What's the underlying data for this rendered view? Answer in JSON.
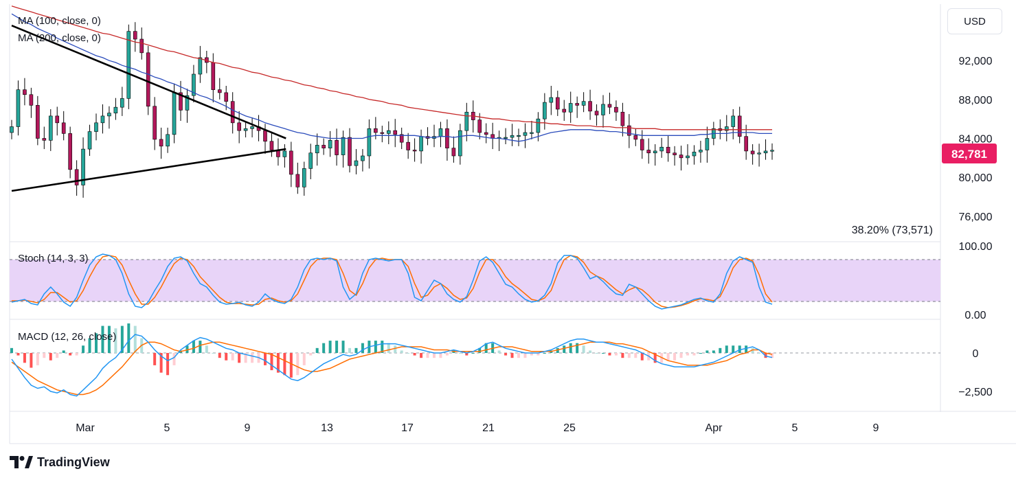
{
  "currency_button": "USD",
  "brand": {
    "name": "TradingView",
    "icon": "tradingview-logo-icon"
  },
  "colors": {
    "up": "#089981",
    "down": "#f23645",
    "candle_up": "#26a69a",
    "candle_down": "#b2185b",
    "ma100": "#2a4bbb",
    "ma200": "#c62828",
    "stoch_k": "#2196f3",
    "stoch_d": "#ff6d00",
    "price_tag": "#e91e63",
    "stoch_band": "#e1c8f7"
  },
  "chart_data": {
    "type": "candlestick",
    "price_axis": {
      "ticks": [
        "92,000",
        "88,000",
        "84,000",
        "80,000",
        "76,000"
      ],
      "range": [
        73800,
        97800
      ]
    },
    "last_price": "82,781",
    "fib_label": "38.20% (73,571)",
    "x_axis": {
      "ticks": [
        "Mar",
        "5",
        "9",
        "13",
        "17",
        "21",
        "25",
        "Apr",
        "5",
        "9"
      ]
    },
    "indicators": {
      "ma100": "MA (100, close, 0)",
      "ma200": "MA (200, close, 0)",
      "stoch": "Stoch (14, 3, 3)",
      "macd": "MACD (12, 26, close)"
    },
    "stoch_axis": {
      "ticks": [
        "100.00",
        "0.00"
      ],
      "band": [
        20,
        80
      ]
    },
    "macd_axis": {
      "ticks": [
        "0",
        "−2,500"
      ]
    },
    "trendlines": [
      {
        "from": [
          0,
          95600
        ],
        "to": [
          42.2,
          84000
        ]
      },
      {
        "from": [
          0,
          78600
        ],
        "to": [
          42.2,
          82900
        ]
      }
    ],
    "price": [
      85200,
      89000,
      88500,
      87400,
      84000,
      83800,
      86300,
      85600,
      84500,
      80800,
      79200,
      82900,
      84700,
      85600,
      86300,
      86600,
      87200,
      88100,
      95000,
      94200,
      92800,
      87300,
      83900,
      83200,
      84400,
      88700,
      86900,
      88400,
      90600,
      92300,
      91800,
      89000,
      88700,
      87800,
      85600,
      84800,
      85000,
      85200,
      84800,
      83700,
      82800,
      82100,
      82700,
      80300,
      79000,
      80900,
      82500,
      83300,
      83000,
      83800,
      82300,
      84100,
      81200,
      81700,
      82200,
      85000,
      84600,
      84500,
      84800,
      84400,
      83600,
      82800,
      82700,
      84200,
      84000,
      84200,
      85000,
      83000,
      82200,
      84800,
      86700,
      85900,
      84600,
      84400,
      84000,
      84100,
      84100,
      84300,
      84300,
      84600,
      84600,
      86000,
      87700,
      88200,
      87000,
      86700,
      87600,
      87400,
      87800,
      86800,
      86400,
      87500,
      87200,
      86700,
      85300,
      84300,
      83900,
      82800,
      82500,
      82700,
      83100,
      82500,
      82300,
      82000,
      82200,
      82600,
      82800,
      84000,
      85000,
      84800,
      85200,
      86300,
      84200,
      82700,
      82400,
      82500,
      82700,
      82781
    ],
    "ma100": [
      96800,
      96400,
      96000,
      95700,
      95300,
      95000,
      94700,
      94300,
      94000,
      93700,
      93400,
      93100,
      92800,
      92500,
      92300,
      92000,
      91800,
      91500,
      91300,
      91100,
      90800,
      90600,
      90300,
      90100,
      89800,
      89600,
      89300,
      89000,
      88700,
      88400,
      88200,
      87900,
      87600,
      87300,
      86900,
      86600,
      86300,
      86100,
      85900,
      85600,
      85400,
      85200,
      85000,
      84800,
      84600,
      84500,
      84300,
      84200,
      84100,
      84000,
      84000,
      84000,
      84000,
      84000,
      84000,
      84200,
      84300,
      84300,
      84300,
      84300,
      84300,
      84300,
      84300,
      84200,
      84100,
      84100,
      84200,
      84200,
      84100,
      84200,
      84300,
      84300,
      84200,
      84100,
      84000,
      84000,
      83900,
      83800,
      83700,
      83800,
      84000,
      84200,
      84400,
      84600,
      84700,
      84800,
      84900,
      84900,
      84900,
      84900,
      84800,
      84800,
      84700,
      84700,
      84600,
      84500,
      84400,
      84300,
      84300,
      84300,
      84300,
      84300,
      84300,
      84300,
      84300,
      84300,
      84400,
      84400,
      84500,
      84500,
      84500,
      84600,
      84600,
      84600,
      84600,
      84500,
      84500,
      84500
    ],
    "ma200": [
      97600,
      97400,
      97200,
      97000,
      96800,
      96600,
      96400,
      96200,
      96000,
      95800,
      95600,
      95400,
      95200,
      95000,
      94800,
      94700,
      94500,
      94300,
      94100,
      93900,
      93800,
      93600,
      93400,
      93200,
      93000,
      92900,
      92700,
      92500,
      92300,
      92200,
      92000,
      91800,
      91700,
      91500,
      91300,
      91200,
      91000,
      90800,
      90700,
      90500,
      90300,
      90200,
      90000,
      89900,
      89700,
      89500,
      89400,
      89200,
      89100,
      88900,
      88800,
      88600,
      88500,
      88300,
      88200,
      88000,
      87900,
      87800,
      87600,
      87500,
      87400,
      87200,
      87100,
      87000,
      86900,
      86800,
      86700,
      86600,
      86500,
      86400,
      86300,
      86300,
      86200,
      86100,
      86000,
      86000,
      85900,
      85800,
      85800,
      85700,
      85700,
      85600,
      85600,
      85500,
      85500,
      85400,
      85400,
      85300,
      85300,
      85300,
      85200,
      85200,
      85200,
      85100,
      85100,
      85100,
      85000,
      85000,
      85000,
      85000,
      84900,
      84900,
      84900,
      84900,
      84900,
      84900,
      84900,
      84900,
      84900,
      84900,
      84900,
      84900,
      84900,
      84900,
      84900,
      84900,
      84900,
      84900
    ],
    "stoch_k": [
      18,
      20,
      22,
      16,
      14,
      30,
      40,
      30,
      18,
      12,
      25,
      50,
      72,
      84,
      88,
      86,
      80,
      60,
      30,
      12,
      10,
      18,
      35,
      50,
      70,
      82,
      84,
      78,
      60,
      45,
      40,
      28,
      18,
      15,
      16,
      18,
      14,
      12,
      18,
      30,
      22,
      18,
      16,
      22,
      40,
      65,
      80,
      82,
      80,
      82,
      78,
      40,
      22,
      30,
      60,
      80,
      82,
      80,
      78,
      80,
      80,
      60,
      25,
      20,
      35,
      50,
      45,
      30,
      22,
      18,
      26,
      50,
      78,
      84,
      76,
      60,
      44,
      40,
      30,
      22,
      18,
      20,
      28,
      45,
      75,
      86,
      86,
      82,
      68,
      52,
      56,
      48,
      38,
      30,
      28,
      44,
      40,
      30,
      20,
      12,
      8,
      10,
      12,
      14,
      18,
      22,
      24,
      20,
      18,
      30,
      60,
      78,
      84,
      80,
      76,
      40,
      18,
      15
    ],
    "stoch_d": [
      20,
      20,
      21,
      19,
      17,
      22,
      32,
      32,
      25,
      18,
      20,
      35,
      55,
      72,
      84,
      86,
      84,
      72,
      50,
      30,
      15,
      15,
      25,
      40,
      58,
      74,
      82,
      80,
      70,
      55,
      45,
      35,
      25,
      18,
      16,
      16,
      15,
      14,
      15,
      22,
      24,
      20,
      18,
      20,
      30,
      50,
      70,
      80,
      82,
      82,
      80,
      60,
      35,
      28,
      45,
      68,
      80,
      82,
      80,
      80,
      80,
      70,
      45,
      25,
      28,
      40,
      45,
      38,
      28,
      22,
      24,
      38,
      62,
      80,
      80,
      70,
      55,
      45,
      38,
      30,
      22,
      20,
      24,
      35,
      60,
      80,
      86,
      84,
      76,
      62,
      56,
      52,
      44,
      36,
      30,
      36,
      40,
      36,
      28,
      18,
      12,
      10,
      11,
      13,
      16,
      20,
      23,
      22,
      20,
      26,
      45,
      68,
      80,
      82,
      78,
      58,
      30,
      18
    ],
    "macd": [
      -400,
      -1000,
      -1600,
      -2100,
      -2300,
      -2200,
      -2500,
      -2600,
      -2400,
      -2700,
      -2800,
      -2400,
      -2000,
      -1600,
      -1000,
      -600,
      -300,
      200,
      800,
      1200,
      1100,
      700,
      200,
      -200,
      -500,
      -300,
      200,
      500,
      800,
      1000,
      900,
      700,
      500,
      300,
      200,
      0,
      -100,
      -200,
      -300,
      -500,
      -800,
      -1100,
      -1400,
      -1700,
      -1800,
      -1600,
      -1300,
      -1000,
      -700,
      -500,
      -300,
      -100,
      -200,
      -100,
      200,
      400,
      500,
      600,
      600,
      600,
      500,
      400,
      300,
      200,
      100,
      0,
      0,
      100,
      200,
      100,
      0,
      100,
      300,
      600,
      700,
      500,
      300,
      200,
      100,
      0,
      0,
      0,
      100,
      200,
      400,
      600,
      800,
      900,
      900,
      800,
      700,
      700,
      600,
      500,
      400,
      300,
      200,
      0,
      -200,
      -500,
      -700,
      -800,
      -900,
      -900,
      -900,
      -900,
      -800,
      -700,
      -600,
      -400,
      -200,
      0,
      200,
      300,
      400,
      200,
      -200,
      -300
    ],
    "macd_signal": [
      -600,
      -900,
      -1200,
      -1500,
      -1800,
      -2000,
      -2200,
      -2400,
      -2500,
      -2600,
      -2700,
      -2700,
      -2600,
      -2400,
      -2100,
      -1700,
      -1300,
      -900,
      -400,
      100,
      500,
      700,
      700,
      600,
      400,
      200,
      100,
      200,
      300,
      500,
      600,
      700,
      700,
      600,
      500,
      400,
      300,
      200,
      100,
      0,
      -100,
      -300,
      -500,
      -700,
      -900,
      -1100,
      -1200,
      -1200,
      -1100,
      -1000,
      -800,
      -600,
      -400,
      -300,
      -200,
      -100,
      0,
      100,
      200,
      300,
      400,
      400,
      400,
      400,
      300,
      200,
      200,
      200,
      100,
      100,
      100,
      100,
      100,
      200,
      300,
      400,
      400,
      400,
      300,
      200,
      100,
      100,
      100,
      100,
      200,
      300,
      400,
      500,
      600,
      700,
      700,
      700,
      700,
      600,
      600,
      500,
      400,
      300,
      100,
      -100,
      -300,
      -500,
      -600,
      -700,
      -800,
      -800,
      -800,
      -800,
      -700,
      -600,
      -500,
      -300,
      -100,
      0,
      200,
      200,
      0,
      -100
    ]
  }
}
